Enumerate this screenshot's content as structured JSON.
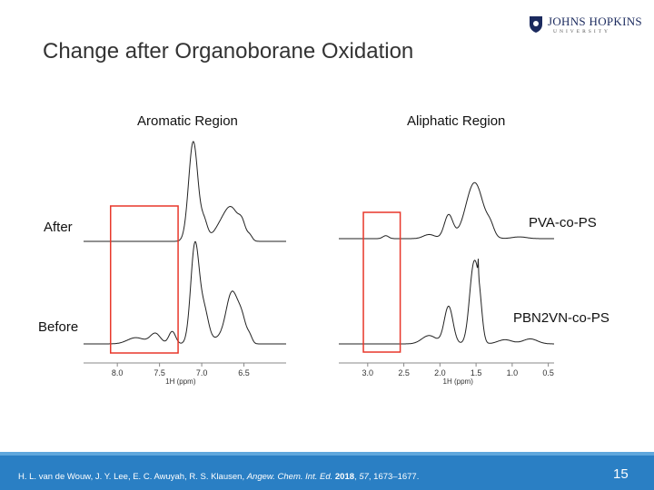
{
  "slide": {
    "title": "Change after Organoborane Oxidation",
    "page_number": "15"
  },
  "logo": {
    "name": "JOHNS HOPKINS",
    "sub": "UNIVERSITY"
  },
  "left_panel": {
    "heading": "Aromatic Region",
    "labels": [
      "After",
      "Before"
    ]
  },
  "right_panel": {
    "heading": "Aliphatic Region",
    "labels": [
      "PVA-co-PS",
      "PBN2VN-co-PS"
    ]
  },
  "citation": {
    "authors": "H. L. van de Wouw, J. Y. Lee, E. C. Awuyah, R. S. Klausen, ",
    "journal": "Angew. Chem. Int. Ed.",
    "year": "2018",
    "volume": "57",
    "pages": ", 1673–1677."
  },
  "colors": {
    "highlight": "#e8372a",
    "footer": "#2a7fc4"
  },
  "chart_data": [
    {
      "type": "line",
      "title": "Aromatic Region",
      "xlabel": "1H (ppm)",
      "xlim": [
        8.4,
        6.0
      ],
      "ticks": [
        "8.0",
        "7.5",
        "7.0",
        "6.5"
      ],
      "tick_values": [
        8.0,
        7.5,
        7.0,
        6.5
      ],
      "highlight_ppm": [
        8.08,
        7.28
      ],
      "series": [
        {
          "name": "After",
          "peaks": [
            [
              7.1,
              1.0,
              0.055
            ],
            [
              6.97,
              0.18,
              0.04
            ],
            [
              6.8,
              0.1,
              0.08
            ],
            [
              6.65,
              0.33,
              0.09
            ],
            [
              6.52,
              0.12,
              0.04
            ],
            [
              6.43,
              0.05,
              0.03
            ]
          ]
        },
        {
          "name": "Before",
          "peaks": [
            [
              7.08,
              0.95,
              0.05
            ],
            [
              6.97,
              0.3,
              0.05
            ],
            [
              6.8,
              0.05,
              0.1
            ],
            [
              6.64,
              0.48,
              0.07
            ],
            [
              6.52,
              0.2,
              0.05
            ],
            [
              6.43,
              0.06,
              0.03
            ],
            [
              7.35,
              0.12,
              0.04
            ],
            [
              7.55,
              0.1,
              0.06
            ],
            [
              7.78,
              0.06,
              0.1
            ]
          ]
        }
      ]
    },
    {
      "type": "line",
      "title": "Aliphatic Region",
      "xlabel": "1H (ppm)",
      "xlim": [
        3.4,
        0.42
      ],
      "ticks": [
        "3.0",
        "2.5",
        "2.0",
        "1.5",
        "1.0",
        "0.5"
      ],
      "tick_values": [
        3.0,
        2.5,
        2.0,
        1.5,
        1.0,
        0.5
      ],
      "highlight_ppm": [
        3.06,
        2.55
      ],
      "series": [
        {
          "name": "PVA-co-PS",
          "peaks": [
            [
              1.52,
              0.95,
              0.12
            ],
            [
              1.88,
              0.4,
              0.06
            ],
            [
              2.15,
              0.07,
              0.08
            ],
            [
              2.75,
              0.05,
              0.04
            ],
            [
              1.3,
              0.15,
              0.05
            ],
            [
              0.9,
              0.03,
              0.1
            ]
          ]
        },
        {
          "name": "PBN2VN-co-PS",
          "peaks": [
            [
              1.53,
              0.95,
              0.06
            ],
            [
              1.45,
              0.3,
              0.04
            ],
            [
              1.47,
              0.18,
              0.004
            ],
            [
              1.88,
              0.45,
              0.06
            ],
            [
              2.15,
              0.1,
              0.1
            ],
            [
              0.75,
              0.06,
              0.1
            ],
            [
              1.1,
              0.05,
              0.1
            ]
          ]
        }
      ]
    }
  ]
}
